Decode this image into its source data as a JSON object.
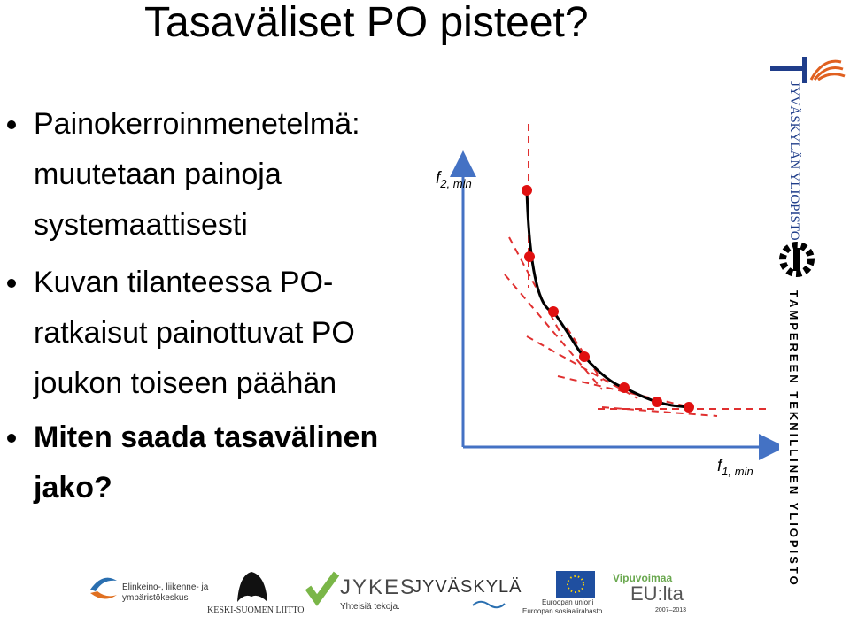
{
  "slide": {
    "title": "Tasaväliset PO pisteet?",
    "bullets": [
      {
        "lines": [
          "Painokerroinmenetelmä:",
          "muutetaan painoja",
          "systemaattisesti"
        ]
      },
      {
        "lines": [
          "Kuvan tilanteessa PO-",
          "ratkaisut painottuvat PO",
          "joukon toiseen päähän"
        ]
      },
      {
        "lines": [
          "Miten saada tasavälinen",
          "jako?"
        ]
      }
    ],
    "figure": {
      "y_axis": {
        "symbol": "f",
        "subscript": "2, min"
      },
      "x_axis": {
        "symbol": "f",
        "subscript": "1, min"
      }
    },
    "side_logos": [
      "JYVÄSKYLÄN YLIOPISTO",
      "TAMPEREEN TEKNILLINEN YLIOPISTO"
    ],
    "footer_logos": {
      "ely": [
        "Elinkeino-, liikenne- ja",
        "ympäristökeskus"
      ],
      "keski_suomen_liitto": "KESKI-SUOMEN LIITTO",
      "jykes": [
        "JYKES",
        "Yhteisiä tekoja."
      ],
      "jyvaskyla": "JYVÄSKYLÄ",
      "eu": [
        "Euroopan unioni",
        "Euroopan sosiaalirahasto"
      ],
      "vipuvoimaa": [
        "Vipuvoimaa",
        "EU:lta",
        "2007–2013"
      ]
    }
  }
}
